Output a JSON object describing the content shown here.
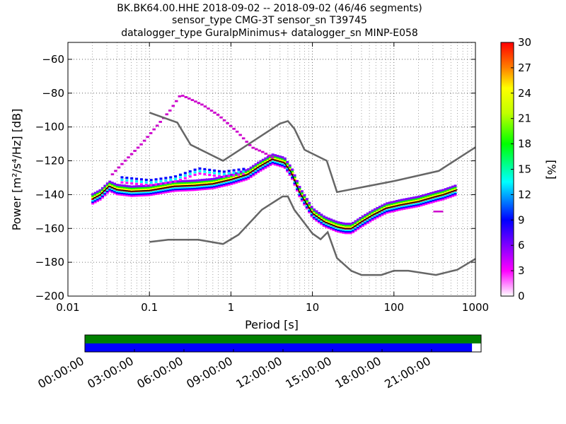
{
  "chart_data": [
    {
      "type": "heatmap",
      "title_lines": [
        "BK.BK64.00.HHE   2018-09-02 -- 2018-09-02  (46/46 segments)",
        "sensor_type CMG-3T sensor_sn T39745",
        "datalogger_type GuralpMinimus+ datalogger_sn MINP-E058"
      ],
      "xlabel": "Period [s]",
      "ylabel": "Power [m²/s⁴/Hz] [dB]",
      "xscale": "log",
      "xlim": [
        0.01,
        1000
      ],
      "ylim": [
        -200,
        -50
      ],
      "x_ticks": [
        {
          "value": 0.01,
          "label": "0.01"
        },
        {
          "value": 0.1,
          "label": "0.1"
        },
        {
          "value": 1,
          "label": "1"
        },
        {
          "value": 10,
          "label": "10"
        },
        {
          "value": 100,
          "label": "100"
        },
        {
          "value": 1000,
          "label": "1000"
        }
      ],
      "y_ticks": [
        {
          "value": -60,
          "label": "−60"
        },
        {
          "value": -80,
          "label": "−80"
        },
        {
          "value": -100,
          "label": "−100"
        },
        {
          "value": -120,
          "label": "−120"
        },
        {
          "value": -140,
          "label": "−140"
        },
        {
          "value": -160,
          "label": "−160"
        },
        {
          "value": -180,
          "label": "−180"
        },
        {
          "value": -200,
          "label": "−200"
        }
      ],
      "grid": true,
      "colorbar": {
        "label": "[%]",
        "range": [
          0,
          30
        ],
        "ticks": [
          {
            "value": 0,
            "label": "0"
          },
          {
            "value": 3,
            "label": "3"
          },
          {
            "value": 6,
            "label": "6"
          },
          {
            "value": 9,
            "label": "9"
          },
          {
            "value": 12,
            "label": "12"
          },
          {
            "value": 15,
            "label": "15"
          },
          {
            "value": 18,
            "label": "18"
          },
          {
            "value": 21,
            "label": "21"
          },
          {
            "value": 24,
            "label": "24"
          },
          {
            "value": 27,
            "label": "27"
          },
          {
            "value": 30,
            "label": "30"
          }
        ]
      },
      "reference_curves": {
        "color": "#666666",
        "high_noise_model": [
          [
            0.1,
            -91.5
          ],
          [
            0.22,
            -97.4
          ],
          [
            0.32,
            -110.5
          ],
          [
            0.8,
            -120
          ],
          [
            4,
            -98
          ],
          [
            5,
            -96.5
          ],
          [
            6,
            -101
          ],
          [
            8,
            -113.5
          ],
          [
            15,
            -120
          ],
          [
            20,
            -138.5
          ],
          [
            100,
            -132
          ],
          [
            354,
            -126
          ],
          [
            1000,
            -112
          ]
        ],
        "low_noise_model": [
          [
            0.1,
            -168
          ],
          [
            0.17,
            -166.7
          ],
          [
            0.4,
            -166.7
          ],
          [
            0.8,
            -169.2
          ],
          [
            1.24,
            -163.7
          ],
          [
            2.4,
            -148.9
          ],
          [
            4.3,
            -141.1
          ],
          [
            5.0,
            -141.1
          ],
          [
            6.0,
            -149.0
          ],
          [
            10,
            -163.0
          ],
          [
            12.6,
            -166.4
          ],
          [
            15.4,
            -162.2
          ],
          [
            20,
            -177.5
          ],
          [
            30,
            -185.1
          ],
          [
            40,
            -187.5
          ],
          [
            70,
            -187.5
          ],
          [
            100,
            -185
          ],
          [
            150,
            -185
          ],
          [
            328,
            -187.5
          ],
          [
            600,
            -184.4
          ],
          [
            1000,
            -178
          ]
        ]
      },
      "psd_median_curve": {
        "color": "#000000",
        "points": [
          [
            0.02,
            -142.5
          ],
          [
            0.025,
            -140
          ],
          [
            0.032,
            -135
          ],
          [
            0.04,
            -137
          ],
          [
            0.06,
            -138
          ],
          [
            0.1,
            -137.5
          ],
          [
            0.2,
            -135
          ],
          [
            0.35,
            -134.5
          ],
          [
            0.6,
            -133.5
          ],
          [
            1,
            -131
          ],
          [
            1.6,
            -128
          ],
          [
            2.2,
            -123.5
          ],
          [
            3.2,
            -119
          ],
          [
            4.5,
            -121
          ],
          [
            5.5,
            -127
          ],
          [
            7,
            -139
          ],
          [
            10,
            -151
          ],
          [
            14,
            -156
          ],
          [
            20,
            -159
          ],
          [
            25,
            -160
          ],
          [
            30,
            -160
          ],
          [
            40,
            -156
          ],
          [
            55,
            -152
          ],
          [
            80,
            -148
          ],
          [
            120,
            -146
          ],
          [
            200,
            -144
          ],
          [
            330,
            -141
          ],
          [
            400,
            -140
          ],
          [
            600,
            -137
          ]
        ]
      },
      "upper_tail_curve": {
        "color": "#cc00cc",
        "points": [
          [
            0.035,
            -128
          ],
          [
            0.05,
            -120
          ],
          [
            0.08,
            -110
          ],
          [
            0.12,
            -100
          ],
          [
            0.18,
            -90
          ],
          [
            0.24,
            -81
          ],
          [
            0.3,
            -83
          ],
          [
            0.45,
            -87
          ],
          [
            0.7,
            -93
          ],
          [
            1.2,
            -103
          ],
          [
            1.8,
            -112
          ],
          [
            2.5,
            -115
          ],
          [
            3.2,
            -118
          ]
        ]
      },
      "spread_band": {
        "color": "#00ffff",
        "points": [
          [
            0.04,
            -131
          ],
          [
            0.1,
            -133
          ],
          [
            0.2,
            -131
          ],
          [
            0.4,
            -126
          ],
          [
            0.8,
            -128
          ],
          [
            1.6,
            -126
          ]
        ]
      },
      "outlier_points": [
        [
          350,
          -150
        ]
      ]
    },
    {
      "type": "timeline",
      "coverage_bars": [
        {
          "color": "#008000",
          "fraction": 1.0
        },
        {
          "color": "#0000ff",
          "fraction": 0.977
        }
      ],
      "time_ticks": [
        "00:00:00",
        "03:00:00",
        "06:00:00",
        "09:00:00",
        "12:00:00",
        "15:00:00",
        "18:00:00",
        "21:00:00"
      ]
    }
  ]
}
